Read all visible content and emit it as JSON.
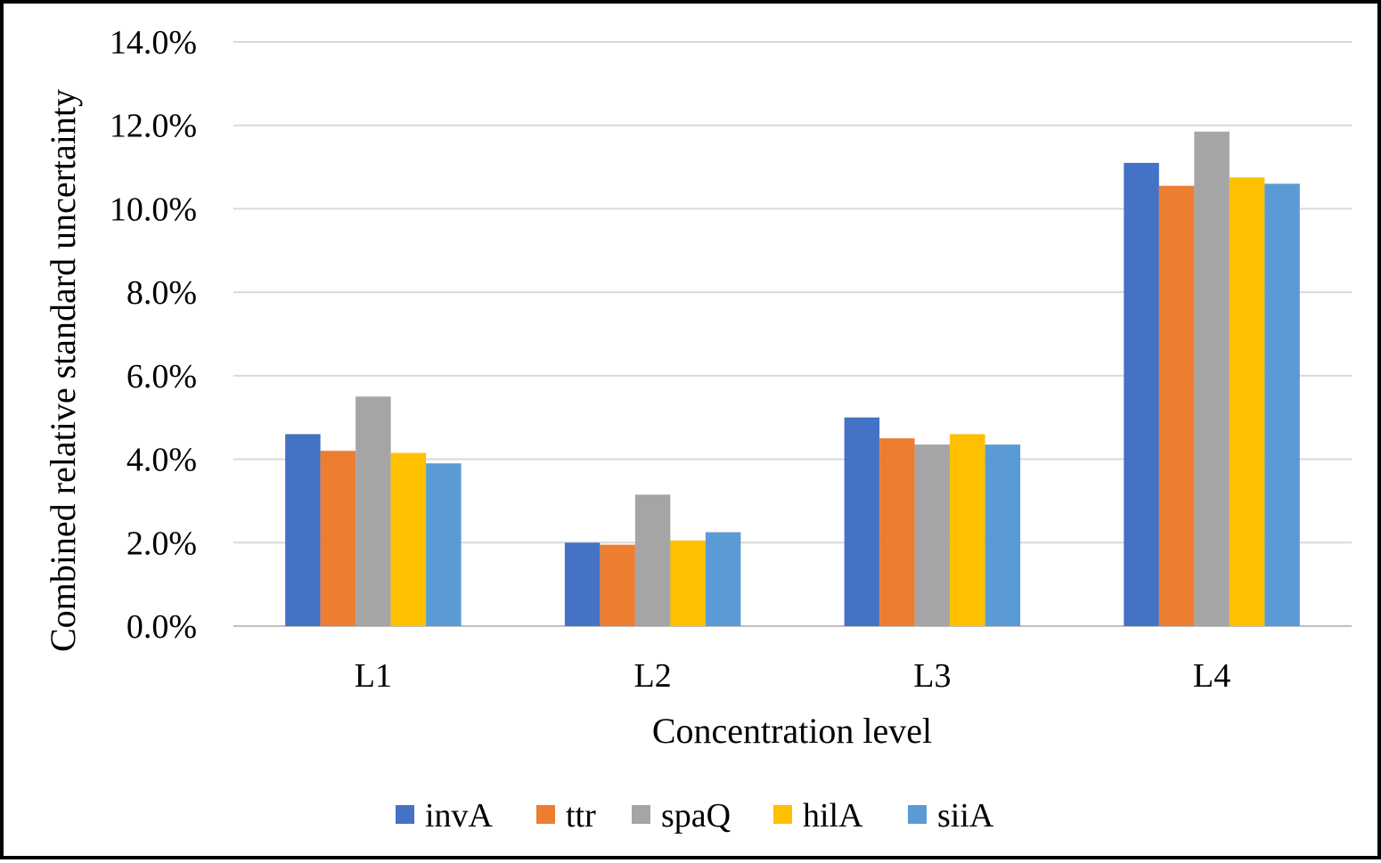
{
  "chart_data": {
    "type": "bar",
    "title": "",
    "xlabel": "Concentration level",
    "ylabel": "Combined relative standard uncertainty",
    "categories": [
      "L1",
      "L2",
      "L3",
      "L4"
    ],
    "ylim": [
      0,
      14
    ],
    "yticks": [
      0,
      2,
      4,
      6,
      8,
      10,
      12,
      14
    ],
    "ytick_labels": [
      "0.0%",
      "2.0%",
      "4.0%",
      "6.0%",
      "8.0%",
      "10.0%",
      "12.0%",
      "14.0%"
    ],
    "grid": true,
    "legend_position": "bottom",
    "series": [
      {
        "name": "invA",
        "color": "#4472c4",
        "values": [
          4.6,
          2.0,
          5.0,
          11.1
        ]
      },
      {
        "name": "ttr",
        "color": "#ed7d31",
        "values": [
          4.2,
          1.95,
          4.5,
          10.55
        ]
      },
      {
        "name": "spaQ",
        "color": "#a5a5a5",
        "values": [
          5.5,
          3.15,
          4.35,
          11.85
        ]
      },
      {
        "name": "hilA",
        "color": "#ffc000",
        "values": [
          4.15,
          2.05,
          4.6,
          10.75
        ]
      },
      {
        "name": "siiA",
        "color": "#5b9bd5",
        "values": [
          3.9,
          2.25,
          4.35,
          10.6
        ]
      }
    ]
  }
}
